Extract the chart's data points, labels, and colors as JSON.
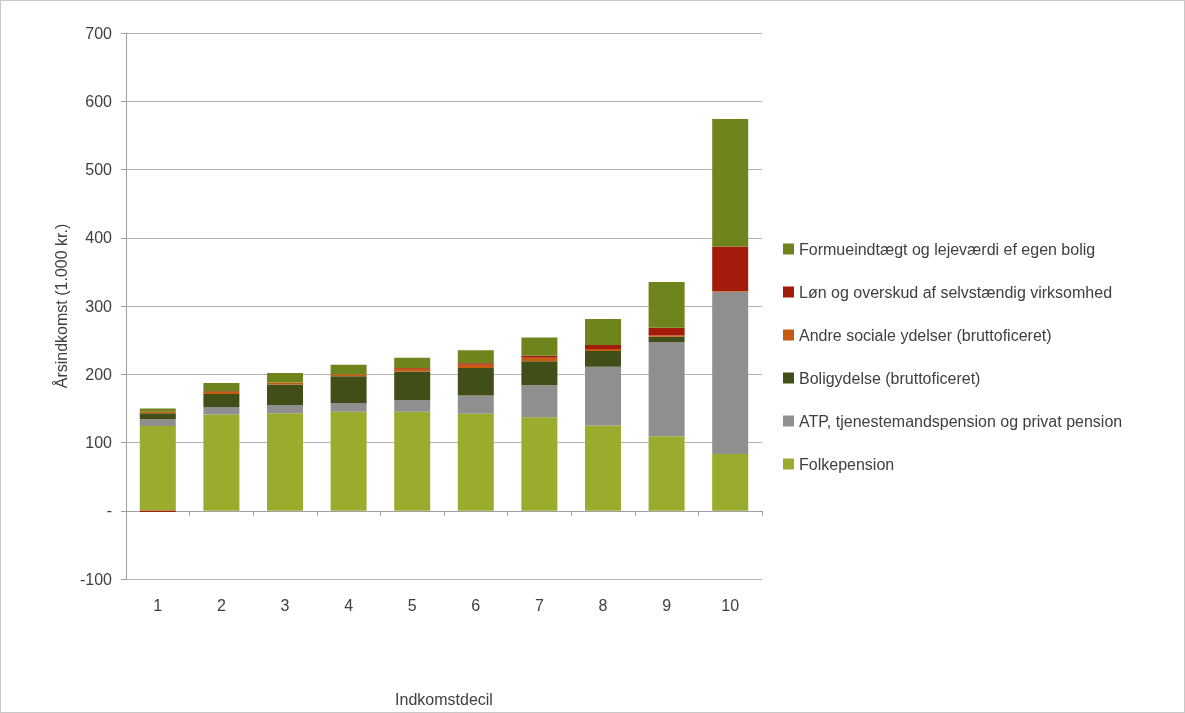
{
  "chart_data": {
    "type": "bar",
    "stacked": true,
    "xlabel": "Indkomstdecil",
    "ylabel": "Årsindkomst (1.000 kr.)",
    "categories": [
      "1",
      "2",
      "3",
      "4",
      "5",
      "6",
      "7",
      "8",
      "9",
      "10"
    ],
    "series": [
      {
        "name": "Folkepension",
        "color": "#9aab2d",
        "values": [
          124,
          141,
          143,
          145,
          145,
          142,
          137,
          125,
          109,
          83
        ]
      },
      {
        "name": "ATP, tjenestemandspension og privat pension",
        "color": "#8f8f8f",
        "values": [
          10,
          11,
          12,
          13,
          17,
          27,
          47,
          86,
          138,
          238
        ]
      },
      {
        "name": "Boligydelse (bruttoficeret)",
        "color": "#3f4f17",
        "values": [
          9,
          19,
          30,
          39,
          42,
          40,
          35,
          23,
          8,
          0
        ]
      },
      {
        "name": "Andre sociale ydelser (bruttoficeret)",
        "color": "#c55a11",
        "values": [
          2,
          3,
          3,
          3,
          4,
          5,
          5,
          3,
          2,
          1
        ]
      },
      {
        "name": "Løn og overskud af selvstændig virksomhed",
        "color": "#a31b0c",
        "values": [
          -2,
          1,
          null,
          null,
          1,
          2,
          3,
          6,
          11,
          65
        ]
      },
      {
        "name": "Formueindtægt og lejeværdi ef egen bolig",
        "color": "#6e841d",
        "values": [
          5,
          12,
          14,
          14,
          15,
          19,
          27,
          38,
          67,
          187
        ]
      }
    ],
    "ylim": [
      -100,
      700
    ],
    "yticks": [
      -100,
      {
        "value": 0,
        "label": "-"
      },
      100,
      200,
      300,
      400,
      500,
      600,
      700
    ],
    "grid": "y",
    "legend": "right"
  }
}
